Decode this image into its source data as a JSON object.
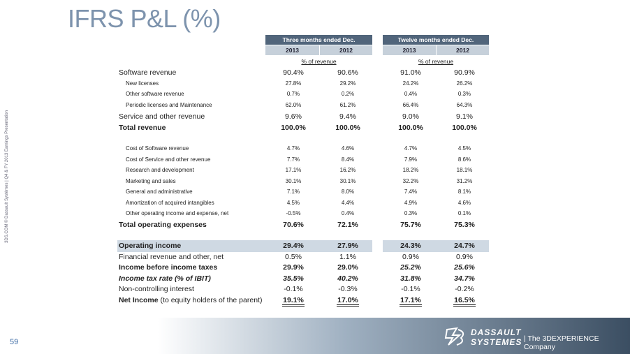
{
  "title": "IFRS P&L (%)",
  "side_note": "3DS.COM © Dassault Systèmes | Q4 & FY 2013 Earnings Presentation",
  "page_number": "59",
  "footer": {
    "brand_line1": "DASSAULT",
    "brand_line2": "SYSTEMES",
    "tagline": "| The 3DEXPERIENCE Company"
  },
  "table": {
    "groups": [
      "Three months ended Dec.",
      "Twelve months ended Dec."
    ],
    "years": [
      "2013",
      "2012",
      "2013",
      "2012"
    ],
    "units": [
      "% of revenue",
      "% of revenue"
    ],
    "rows": [
      {
        "label": "Software revenue",
        "values": [
          "90.4%",
          "90.6%",
          "91.0%",
          "90.9%"
        ]
      },
      {
        "label": "New licenses",
        "values": [
          "27.8%",
          "29.2%",
          "24.2%",
          "26.2%"
        ]
      },
      {
        "label": "Other software revenue",
        "values": [
          "0.7%",
          "0.2%",
          "0.4%",
          "0.3%"
        ]
      },
      {
        "label": "Periodic licenses and Maintenance",
        "values": [
          "62.0%",
          "61.2%",
          "66.4%",
          "64.3%"
        ]
      },
      {
        "label": "Service and other revenue",
        "values": [
          "9.6%",
          "9.4%",
          "9.0%",
          "9.1%"
        ]
      },
      {
        "label": "Total revenue",
        "values": [
          "100.0%",
          "100.0%",
          "100.0%",
          "100.0%"
        ]
      },
      {
        "label": "Cost of Software revenue",
        "values": [
          "4.7%",
          "4.6%",
          "4.7%",
          "4.5%"
        ]
      },
      {
        "label": "Cost of Service and other revenue",
        "values": [
          "7.7%",
          "8.4%",
          "7.9%",
          "8.6%"
        ]
      },
      {
        "label": "Research and development",
        "values": [
          "17.1%",
          "16.2%",
          "18.2%",
          "18.1%"
        ]
      },
      {
        "label": "Marketing and sales",
        "values": [
          "30.1%",
          "30.1%",
          "32.2%",
          "31.2%"
        ]
      },
      {
        "label": "General and administrative",
        "values": [
          "7.1%",
          "8.0%",
          "7.4%",
          "8.1%"
        ]
      },
      {
        "label": "Amortization of acquired intangibles",
        "values": [
          "4.5%",
          "4.4%",
          "4.9%",
          "4.6%"
        ]
      },
      {
        "label": "Other operating income and expense, net",
        "values": [
          "-0.5%",
          "0.4%",
          "0.3%",
          "0.1%"
        ]
      },
      {
        "label": "Total operating expenses",
        "values": [
          "70.6%",
          "72.1%",
          "75.7%",
          "75.3%"
        ]
      },
      {
        "label": "Operating income",
        "values": [
          "29.4%",
          "27.9%",
          "24.3%",
          "24.7%"
        ]
      },
      {
        "label": "Financial revenue and other, net",
        "values": [
          "0.5%",
          "1.1%",
          "0.9%",
          "0.9%"
        ]
      },
      {
        "label": "Income before income taxes",
        "values": [
          "29.9%",
          "29.0%",
          "25.2%",
          "25.6%"
        ]
      },
      {
        "label": "Income tax rate (% of IBIT)",
        "values": [
          "35.5%",
          "40.2%",
          "31.8%",
          "34.7%"
        ]
      },
      {
        "label": "Non-controlling interest",
        "values": [
          "-0.1%",
          "-0.3%",
          "-0.1%",
          "-0.2%"
        ]
      },
      {
        "label": "Net Income",
        "label_note": "(to equity holders of the parent)",
        "values": [
          "19.1%",
          "17.0%",
          "17.1%",
          "16.5%"
        ]
      }
    ]
  }
}
